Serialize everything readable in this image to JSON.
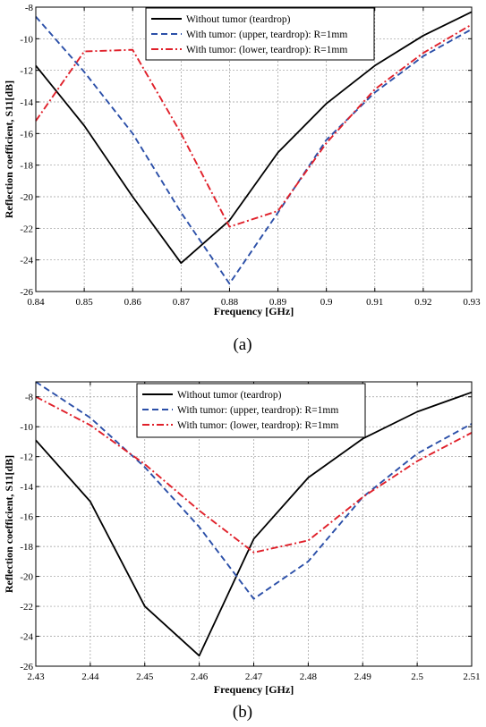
{
  "chart_data": [
    {
      "type": "line",
      "caption": "(a)",
      "xlabel": "Frequency [GHz]",
      "ylabel": "Reflection coefficient, S11[dB]",
      "xlim": [
        0.84,
        0.93
      ],
      "ylim": [
        -26,
        -8
      ],
      "xticks": [
        0.84,
        0.85,
        0.86,
        0.87,
        0.88,
        0.89,
        0.9,
        0.91,
        0.92,
        0.93
      ],
      "xtick_labels": [
        "0.84",
        "0.85",
        "0.86",
        "0.87",
        "0.88",
        "0.89",
        "0.9",
        "0.91",
        "0.92",
        "0.93"
      ],
      "yticks": [
        -26,
        -24,
        -22,
        -20,
        -18,
        -16,
        -14,
        -12,
        -10,
        -8
      ],
      "ytick_labels": [
        "-26",
        "-24",
        "-22",
        "-20",
        "-18",
        "-16",
        "-14",
        "-12",
        "-10",
        "-8"
      ],
      "grid": true,
      "legend_position": "top-right",
      "series": [
        {
          "name": "Without tumor (teardrop)",
          "color": "#000000",
          "style": "solid",
          "x": [
            0.84,
            0.85,
            0.86,
            0.87,
            0.88,
            0.89,
            0.9,
            0.91,
            0.92,
            0.93
          ],
          "y": [
            -11.7,
            -15.5,
            -20.0,
            -24.2,
            -21.5,
            -17.2,
            -14.1,
            -11.7,
            -9.8,
            -8.3
          ]
        },
        {
          "name": "With tumor: (upper, teardrop): R=1mm",
          "color": "#2b4fa8",
          "style": "dashed",
          "x": [
            0.84,
            0.85,
            0.86,
            0.87,
            0.88,
            0.89,
            0.9,
            0.91,
            0.92,
            0.93
          ],
          "y": [
            -8.6,
            -12.1,
            -16.0,
            -21.0,
            -25.5,
            -21.0,
            -16.4,
            -13.4,
            -11.1,
            -9.4
          ]
        },
        {
          "name": "With tumor: (lower, teardrop): R=1mm",
          "color": "#e0202a",
          "style": "dashdot",
          "x": [
            0.84,
            0.85,
            0.86,
            0.87,
            0.88,
            0.89,
            0.9,
            0.91,
            0.92,
            0.93
          ],
          "y": [
            -15.2,
            -10.8,
            -10.7,
            -16.0,
            -21.9,
            -20.9,
            -16.6,
            -13.2,
            -10.9,
            -9.1
          ]
        }
      ]
    },
    {
      "type": "line",
      "caption": "(b)",
      "xlabel": "Frequency [GHz]",
      "ylabel": "Reflection coefficient, S11[dB]",
      "xlim": [
        2.43,
        2.51
      ],
      "ylim": [
        -26,
        -7
      ],
      "xticks": [
        2.43,
        2.44,
        2.45,
        2.46,
        2.47,
        2.48,
        2.49,
        2.5,
        2.51
      ],
      "xtick_labels": [
        "2.43",
        "2.44",
        "2.45",
        "2.46",
        "2.47",
        "2.48",
        "2.49",
        "2.5",
        "2.51"
      ],
      "yticks": [
        -26,
        -24,
        -22,
        -20,
        -18,
        -16,
        -14,
        -12,
        -10,
        -8
      ],
      "ytick_labels": [
        "-26",
        "-24",
        "-22",
        "-20",
        "-18",
        "-16",
        "-14",
        "-12",
        "-10",
        "-8"
      ],
      "grid": true,
      "legend_position": "top-right",
      "series": [
        {
          "name": "Without tumor (teardrop)",
          "color": "#000000",
          "style": "solid",
          "x": [
            2.43,
            2.44,
            2.45,
            2.46,
            2.47,
            2.48,
            2.49,
            2.5,
            2.51
          ],
          "y": [
            -10.9,
            -15.0,
            -22.0,
            -25.3,
            -17.5,
            -13.4,
            -10.8,
            -9.0,
            -7.7
          ]
        },
        {
          "name": "With tumor: (upper, teardrop): R=1mm",
          "color": "#2b4fa8",
          "style": "dashed",
          "x": [
            2.43,
            2.44,
            2.45,
            2.46,
            2.47,
            2.48,
            2.49,
            2.5,
            2.51
          ],
          "y": [
            -7.0,
            -9.4,
            -12.7,
            -16.7,
            -21.5,
            -19.0,
            -14.7,
            -11.8,
            -9.8
          ]
        },
        {
          "name": "With tumor: (lower, teardrop): R=1mm",
          "color": "#e0202a",
          "style": "dashdot",
          "x": [
            2.43,
            2.44,
            2.45,
            2.46,
            2.47,
            2.48,
            2.49,
            2.5,
            2.51
          ],
          "y": [
            -8.0,
            -9.9,
            -12.5,
            -15.6,
            -18.4,
            -17.6,
            -14.7,
            -12.3,
            -10.4
          ]
        }
      ]
    }
  ]
}
